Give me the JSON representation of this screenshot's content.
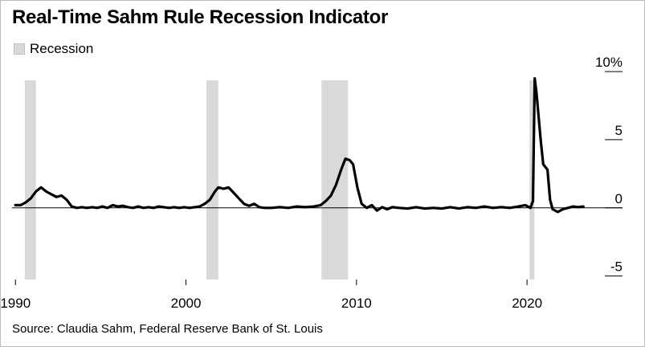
{
  "title": "Real-Time Sahm Rule Recession Indicator",
  "legend": {
    "label": "Recession",
    "color": "#d9d9d9"
  },
  "source": "Source: Claudia Sahm, Federal Reserve Bank of St. Louis",
  "chart_data": {
    "type": "line",
    "title": "Real-Time Sahm Rule Recession Indicator",
    "xlabel": "",
    "ylabel": "",
    "xlim": [
      1989.8,
      2025.6
    ],
    "ylim": [
      -5.2,
      10.3
    ],
    "y_ticks": [
      {
        "value": 10,
        "label": "10%"
      },
      {
        "value": 5,
        "label": "5"
      },
      {
        "value": 0,
        "label": "0"
      },
      {
        "value": -5,
        "label": "-5"
      }
    ],
    "x_ticks": [
      {
        "value": 1990,
        "label": "1990"
      },
      {
        "value": 2000,
        "label": "2000"
      },
      {
        "value": 2010,
        "label": "2010"
      },
      {
        "value": 2020,
        "label": "2020"
      }
    ],
    "grid": "zero line only",
    "recessions": [
      [
        1990.55,
        1991.2
      ],
      [
        2001.2,
        2001.9
      ],
      [
        2007.95,
        2009.5
      ],
      [
        2020.15,
        2020.35
      ]
    ],
    "series": [
      {
        "color": "#000000",
        "points": [
          [
            1990.0,
            0.2
          ],
          [
            1990.3,
            0.2
          ],
          [
            1990.6,
            0.4
          ],
          [
            1990.9,
            0.7
          ],
          [
            1991.2,
            1.2
          ],
          [
            1991.5,
            1.5
          ],
          [
            1991.8,
            1.2
          ],
          [
            1992.1,
            1.0
          ],
          [
            1992.4,
            0.8
          ],
          [
            1992.7,
            0.9
          ],
          [
            1993.0,
            0.6
          ],
          [
            1993.3,
            0.1
          ],
          [
            1993.6,
            0.0
          ],
          [
            1993.9,
            0.05
          ],
          [
            1994.2,
            0.0
          ],
          [
            1994.5,
            0.05
          ],
          [
            1994.8,
            0.0
          ],
          [
            1995.1,
            0.1
          ],
          [
            1995.4,
            0.0
          ],
          [
            1995.7,
            0.2
          ],
          [
            1996.0,
            0.1
          ],
          [
            1996.3,
            0.15
          ],
          [
            1996.6,
            0.05
          ],
          [
            1996.9,
            0.0
          ],
          [
            1997.2,
            0.1
          ],
          [
            1997.5,
            0.0
          ],
          [
            1997.8,
            0.05
          ],
          [
            1998.1,
            0.0
          ],
          [
            1998.4,
            0.1
          ],
          [
            1998.7,
            0.05
          ],
          [
            1999.0,
            0.0
          ],
          [
            1999.3,
            0.05
          ],
          [
            1999.6,
            0.0
          ],
          [
            1999.9,
            0.05
          ],
          [
            2000.2,
            0.0
          ],
          [
            2000.5,
            0.05
          ],
          [
            2000.8,
            0.1
          ],
          [
            2001.1,
            0.3
          ],
          [
            2001.4,
            0.6
          ],
          [
            2001.7,
            1.2
          ],
          [
            2001.9,
            1.5
          ],
          [
            2002.2,
            1.4
          ],
          [
            2002.5,
            1.5
          ],
          [
            2002.8,
            1.1
          ],
          [
            2003.1,
            0.7
          ],
          [
            2003.4,
            0.3
          ],
          [
            2003.7,
            0.15
          ],
          [
            2004.0,
            0.3
          ],
          [
            2004.3,
            0.05
          ],
          [
            2004.6,
            0.0
          ],
          [
            2005.0,
            0.0
          ],
          [
            2005.5,
            0.05
          ],
          [
            2006.0,
            0.0
          ],
          [
            2006.5,
            0.1
          ],
          [
            2007.0,
            0.05
          ],
          [
            2007.5,
            0.1
          ],
          [
            2007.9,
            0.2
          ],
          [
            2008.2,
            0.5
          ],
          [
            2008.5,
            0.9
          ],
          [
            2008.8,
            1.7
          ],
          [
            2009.1,
            2.8
          ],
          [
            2009.35,
            3.6
          ],
          [
            2009.6,
            3.5
          ],
          [
            2009.8,
            3.2
          ],
          [
            2010.05,
            1.5
          ],
          [
            2010.3,
            0.3
          ],
          [
            2010.6,
            0.0
          ],
          [
            2010.9,
            0.2
          ],
          [
            2011.2,
            -0.2
          ],
          [
            2011.5,
            0.05
          ],
          [
            2011.8,
            -0.1
          ],
          [
            2012.1,
            0.05
          ],
          [
            2012.5,
            0.0
          ],
          [
            2013.0,
            -0.05
          ],
          [
            2013.5,
            0.05
          ],
          [
            2014.0,
            -0.05
          ],
          [
            2014.5,
            0.0
          ],
          [
            2015.0,
            -0.05
          ],
          [
            2015.5,
            0.05
          ],
          [
            2016.0,
            -0.05
          ],
          [
            2016.5,
            0.05
          ],
          [
            2017.0,
            0.0
          ],
          [
            2017.5,
            0.1
          ],
          [
            2018.0,
            0.0
          ],
          [
            2018.5,
            0.05
          ],
          [
            2019.0,
            0.0
          ],
          [
            2019.5,
            0.1
          ],
          [
            2019.9,
            0.2
          ],
          [
            2020.2,
            0.0
          ],
          [
            2020.35,
            0.5
          ],
          [
            2020.45,
            9.5
          ],
          [
            2020.55,
            8.5
          ],
          [
            2020.8,
            5.0
          ],
          [
            2020.95,
            3.2
          ],
          [
            2021.2,
            2.8
          ],
          [
            2021.35,
            0.6
          ],
          [
            2021.5,
            -0.1
          ],
          [
            2021.8,
            -0.3
          ],
          [
            2022.1,
            -0.1
          ],
          [
            2022.4,
            0.0
          ],
          [
            2022.7,
            0.1
          ],
          [
            2023.0,
            0.05
          ],
          [
            2023.3,
            0.1
          ]
        ]
      }
    ]
  }
}
